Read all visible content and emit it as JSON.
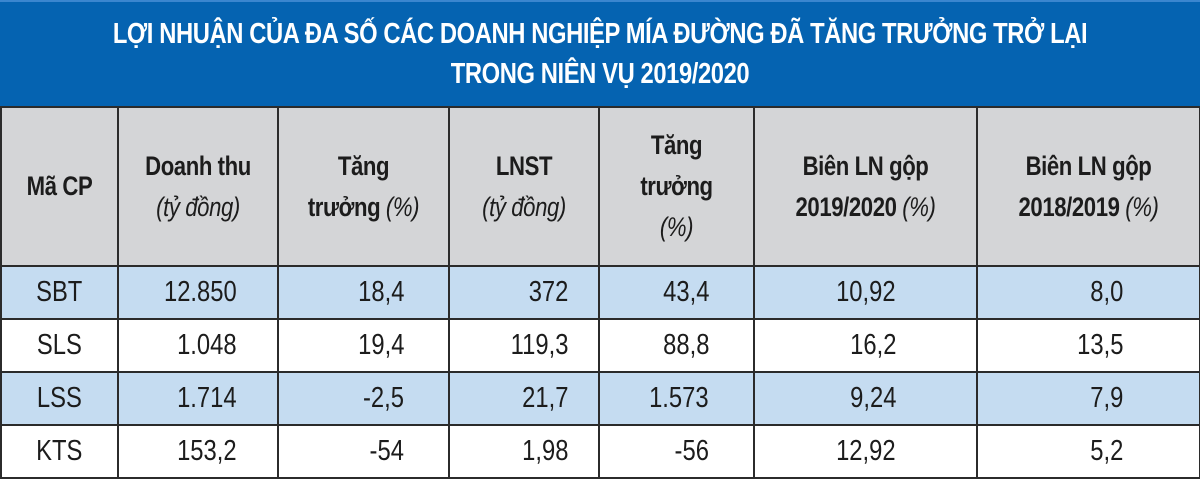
{
  "title": {
    "line1": "LỢI NHUẬN CỦA ĐA SỐ CÁC DOANH NGHIỆP MÍA ĐƯỜNG ĐÃ TĂNG TRƯỞNG TRỞ LẠI",
    "line2": "TRONG NIÊN VỤ 2019/2020"
  },
  "colors": {
    "title_background": "#0563b1",
    "header_background": "#d4d5d7",
    "shaded_row": "#c5dcf1",
    "plain_row": "#ffffff",
    "border": "#2b2b2b"
  },
  "table": {
    "headers": [
      {
        "lines": [
          {
            "bold": "Mã CP",
            "italic": ""
          }
        ]
      },
      {
        "lines": [
          {
            "bold": "Doanh thu",
            "italic": ""
          },
          {
            "bold": "",
            "italic": "(tỷ đồng)"
          }
        ]
      },
      {
        "lines": [
          {
            "bold": "Tăng",
            "italic": ""
          },
          {
            "bold": "trưởng ",
            "italic": "(%)"
          }
        ]
      },
      {
        "lines": [
          {
            "bold": "LNST",
            "italic": ""
          },
          {
            "bold": "",
            "italic": "(tỷ đồng)"
          }
        ]
      },
      {
        "lines": [
          {
            "bold": "Tăng",
            "italic": ""
          },
          {
            "bold": "trưởng",
            "italic": ""
          },
          {
            "bold": "",
            "italic": "(%)"
          }
        ]
      },
      {
        "lines": [
          {
            "bold": "Biên LN gộp",
            "italic": ""
          },
          {
            "bold": "2019/2020 ",
            "italic": "(%)"
          }
        ]
      },
      {
        "lines": [
          {
            "bold": "Biên LN gộp",
            "italic": ""
          },
          {
            "bold": "2018/2019 ",
            "italic": "(%)"
          }
        ]
      }
    ],
    "rows": [
      {
        "code": "SBT",
        "revenue": "12.850",
        "revenue_growth": "18,4",
        "lnst": "372",
        "lnst_growth": "43,4",
        "margin_2019_2020": "10,92",
        "margin_2018_2019": "8,0"
      },
      {
        "code": "SLS",
        "revenue": "1.048",
        "revenue_growth": "19,4",
        "lnst": "119,3",
        "lnst_growth": "88,8",
        "margin_2019_2020": "16,2",
        "margin_2018_2019": "13,5"
      },
      {
        "code": "LSS",
        "revenue": "1.714",
        "revenue_growth": "-2,5",
        "lnst": "21,7",
        "lnst_growth": "1.573",
        "margin_2019_2020": "9,24",
        "margin_2018_2019": "7,9"
      },
      {
        "code": "KTS",
        "revenue": "153,2",
        "revenue_growth": "-54",
        "lnst": "1,98",
        "lnst_growth": "-56",
        "margin_2019_2020": "12,92",
        "margin_2018_2019": "5,2"
      }
    ]
  }
}
